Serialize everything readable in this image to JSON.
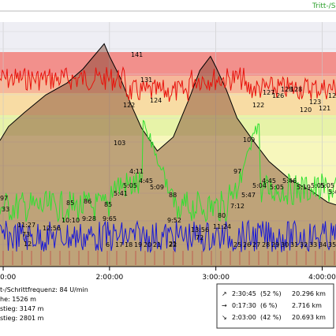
{
  "header": {
    "right_label": "Tritt-/S"
  },
  "chart_data": {
    "type": "line",
    "x_ticks": [
      "0:00",
      "2:00:00",
      "3:00:00",
      "4:00:00"
    ],
    "x_tick_hours": [
      1.0,
      2.0,
      3.0,
      4.0
    ],
    "x_range_hours": [
      0.97,
      4.13
    ],
    "zones": [
      {
        "color": "#f2908c"
      },
      {
        "color": "#f6b79a"
      },
      {
        "color": "#f8dca4"
      },
      {
        "color": "#e7f3a8"
      },
      {
        "color": "#f7f7bc"
      },
      {
        "color": "#f7f7bc"
      }
    ],
    "elevation_series": {
      "name": "",
      "color": "#a05a3a",
      "points": [
        [
          0.97,
          180
        ],
        [
          1.05,
          200
        ],
        [
          1.2,
          220
        ],
        [
          1.4,
          245
        ],
        [
          1.6,
          262
        ],
        [
          1.75,
          282
        ],
        [
          1.85,
          300
        ],
        [
          1.95,
          318
        ],
        [
          2.0,
          300
        ],
        [
          2.1,
          270
        ],
        [
          2.2,
          232
        ],
        [
          2.3,
          198
        ],
        [
          2.45,
          165
        ],
        [
          2.6,
          185
        ],
        [
          2.75,
          240
        ],
        [
          2.85,
          280
        ],
        [
          2.95,
          300
        ],
        [
          3.0,
          285
        ],
        [
          3.1,
          252
        ],
        [
          3.2,
          212
        ],
        [
          3.35,
          180
        ],
        [
          3.5,
          150
        ],
        [
          3.7,
          124
        ],
        [
          3.9,
          108
        ],
        [
          4.05,
          92
        ],
        [
          4.13,
          88
        ]
      ]
    },
    "heart_rate_labels": [
      "141",
      "131",
      "124",
      "122",
      "122",
      "127",
      "126",
      "128",
      "128",
      "123",
      "120",
      "121",
      "126"
    ],
    "speed_labels": [
      "103",
      "109",
      "97",
      "4:11",
      "4:45",
      "5:09",
      "5:41",
      "5:05",
      "88",
      "5:04",
      "5:47",
      "4:45",
      "5:05",
      "5:46",
      "5:19",
      "5:05",
      "5:05",
      "5:43"
    ],
    "cadence_labels": [
      "97",
      "33",
      "85",
      "86",
      "85",
      "11:27",
      "12:56",
      "10:10",
      "9:28",
      "9:65",
      "9:52",
      "80",
      "11:24",
      "13:56",
      "7:12",
      "73",
      "12",
      "72",
      "21"
    ],
    "km_markers": [
      "6",
      "17",
      "18",
      "19",
      "20",
      "21",
      "22",
      "25",
      "26",
      "27",
      "28",
      "29",
      "30",
      "31",
      "32",
      "33",
      "34",
      "35"
    ],
    "legend_lines": [
      "t-/Schrittfrequenz: 84 U/min",
      "he:  1526 m",
      "stieg: 3147 m",
      "stieg: 2801 m"
    ],
    "summary_table": [
      {
        "arrow": "↗",
        "time": "2:30:45",
        "pct": "(52 %)",
        "dist": "20.296 km"
      },
      {
        "arrow": "→",
        "time": "0:17:30",
        "pct": "(6 %)",
        "dist": "2.716 km"
      },
      {
        "arrow": "↘",
        "time": "2:03:00",
        "pct": "(42 %)",
        "dist": "20.693 km"
      }
    ]
  }
}
